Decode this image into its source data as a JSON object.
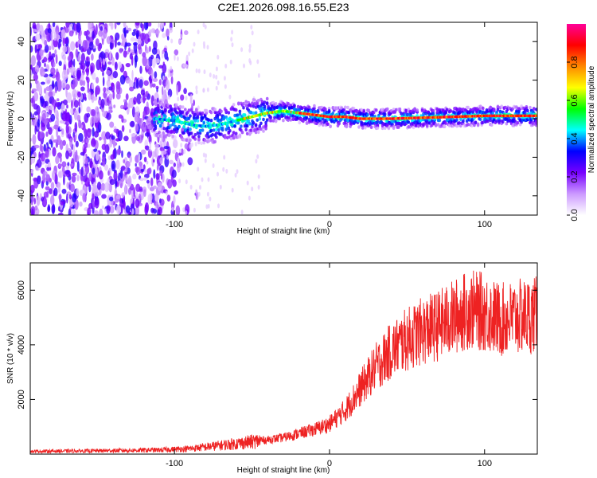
{
  "page": {
    "title": "C2E1.2026.098.16.55.E23"
  },
  "chart_data": [
    {
      "type": "heatmap",
      "title": "C2E1.2026.098.16.55.E23",
      "xlabel": "Height of straight line (km)",
      "ylabel": "Frequency (Hz)",
      "xlim": [
        -193,
        134
      ],
      "ylim": [
        -50,
        50
      ],
      "xticks": [
        -100,
        0,
        100
      ],
      "xtick_labels": [
        "-100",
        "0",
        "100"
      ],
      "yticks": [
        -40,
        -20,
        0,
        20,
        40
      ],
      "ytick_labels": [
        "-40",
        "-20",
        "0",
        "20",
        "40"
      ],
      "colorbar": {
        "label": "Normalized spectral amplitude",
        "range": [
          0.0,
          1.0
        ],
        "ticks": [
          0.0,
          0.2,
          0.4,
          0.6,
          0.8
        ],
        "tick_labels": [
          "0.0",
          "0.2",
          "0.4",
          "0.6",
          "0.8"
        ],
        "colors": [
          "#ffffff",
          "#cc99ff",
          "#7700ff",
          "#0000ff",
          "#00ffff",
          "#00ff00",
          "#ffff00",
          "#ff8800",
          "#ff0000",
          "#ff0099"
        ]
      },
      "noise_region_km": [
        -193,
        -105
      ],
      "signal_start_km": -113,
      "ridge": {
        "x": [
          -113,
          -100,
          -90,
          -80,
          -70,
          -60,
          -50,
          -40,
          -30,
          -20,
          -10,
          0,
          10,
          20,
          40,
          60,
          80,
          100,
          120,
          134
        ],
        "freq_hz": [
          0,
          -1,
          -3,
          -4,
          -3,
          -1,
          1,
          3,
          4,
          3,
          2,
          1,
          1,
          0,
          0,
          0.5,
          1,
          1.5,
          1.5,
          1.5
        ]
      }
    },
    {
      "type": "line",
      "xlabel": "Height of straight line (km)",
      "ylabel": "SNR (10 * v/v)",
      "xlim": [
        -193,
        134
      ],
      "ylim": [
        0,
        7000
      ],
      "xticks": [
        -100,
        0,
        100
      ],
      "xtick_labels": [
        "-100",
        "0",
        "100"
      ],
      "yticks": [
        2000,
        4000,
        6000
      ],
      "ytick_labels": [
        "2000",
        "4000",
        "6000"
      ],
      "color": "#ee2222",
      "envelope": {
        "x": [
          -193,
          -150,
          -110,
          -90,
          -70,
          -50,
          -30,
          -20,
          -10,
          0,
          10,
          20,
          30,
          40,
          50,
          60,
          70,
          80,
          90,
          100,
          110,
          120,
          134
        ],
        "y": [
          100,
          120,
          150,
          200,
          320,
          450,
          600,
          750,
          900,
          1100,
          1600,
          2400,
          3200,
          3800,
          4200,
          4500,
          4700,
          5000,
          5300,
          5200,
          4900,
          5000,
          5100
        ]
      }
    }
  ]
}
